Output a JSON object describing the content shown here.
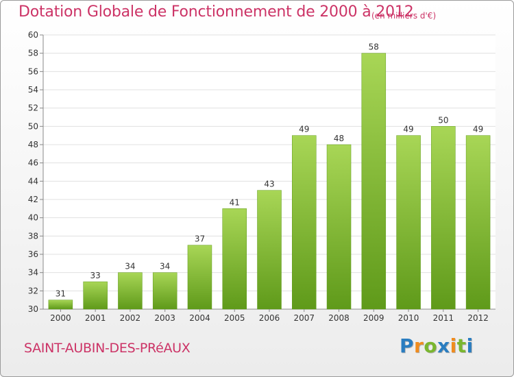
{
  "title": "Dotation Globale de Fonctionnement de 2000 à 2012",
  "subtitle": "(en milliers d'€)",
  "commune": "SAINT-AUBIN-DES-PRéAUX",
  "logo": {
    "text": "Proxiti",
    "letters": [
      {
        "char": "P",
        "color": "#2a7dc0"
      },
      {
        "char": "r",
        "color": "#f08c1e"
      },
      {
        "char": "o",
        "color": "#7ab62f"
      },
      {
        "char": "x",
        "color": "#2a7dc0"
      },
      {
        "char": "i",
        "color": "#f08c1e"
      },
      {
        "char": "t",
        "color": "#7ab62f"
      },
      {
        "char": "i",
        "color": "#2a7dc0"
      }
    ]
  },
  "colors": {
    "title": "#cc3366",
    "bar_light": "#a8d656",
    "bar_dark": "#5f9a1a"
  },
  "chart_data": {
    "type": "bar",
    "categories": [
      "2000",
      "2001",
      "2002",
      "2003",
      "2004",
      "2005",
      "2006",
      "2007",
      "2008",
      "2009",
      "2010",
      "2011",
      "2012"
    ],
    "values": [
      31,
      33,
      34,
      34,
      37,
      41,
      43,
      49,
      48,
      58,
      49,
      50,
      49
    ],
    "ylim": [
      30,
      60
    ],
    "yticks": [
      30,
      32,
      34,
      36,
      38,
      40,
      42,
      44,
      46,
      48,
      50,
      52,
      54,
      56,
      58,
      60
    ],
    "grid": true
  }
}
